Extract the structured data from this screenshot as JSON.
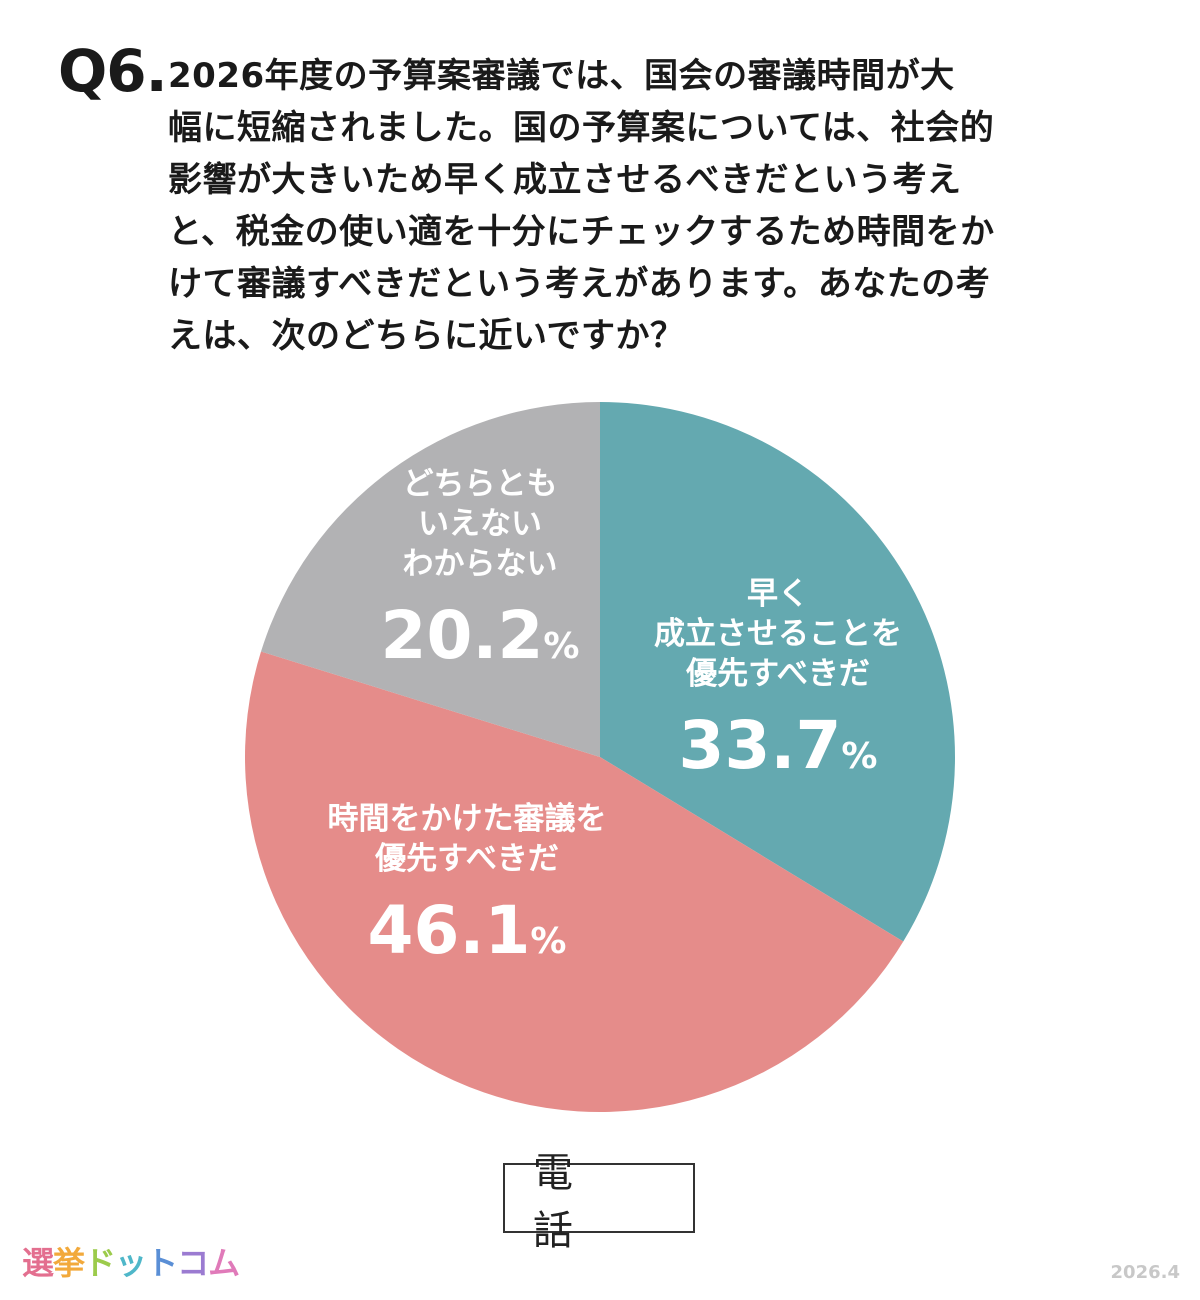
{
  "question": {
    "number": "Q6.",
    "lines": [
      "2026年度の予算案審議では、国会の審議時間が大",
      "幅に短縮されました。国の予算案については、社会的",
      "影響が大きいため早く成立させるべきだという考え",
      "と、税金の使い適を十分にチェックするため時間をか",
      "けて審議すべきだという考えがあります。あなたの考",
      "えは、次のどちらに近いですか？"
    ]
  },
  "chart_data": {
    "type": "pie",
    "unit": "%",
    "start_angle_deg": 0,
    "direction": "clockwise",
    "slices": [
      {
        "label_lines": [
          "早く",
          "成立させることを",
          "優先すべきだ"
        ],
        "value": 33.7,
        "value_text": "33.7",
        "color": "#64a9b0"
      },
      {
        "label_lines": [
          "時間をかけた審議を",
          "優先すべきだ"
        ],
        "value": 46.1,
        "value_text": "46.1",
        "color": "#e58c8a"
      },
      {
        "label_lines": [
          "どちらとも",
          "いえない",
          "わからない"
        ],
        "value": 20.2,
        "value_text": "20.2",
        "color": "#b2b2b4"
      }
    ]
  },
  "survey_mode": "電 話",
  "logo": {
    "chars": [
      {
        "t": "選",
        "color": "#e36f8f"
      },
      {
        "t": "挙",
        "color": "#f2a93b"
      },
      {
        "t": "ド",
        "color": "#9ccb4b"
      },
      {
        "t": "ッ",
        "color": "#4fb7c9"
      },
      {
        "t": "ト",
        "color": "#5a8fd6"
      },
      {
        "t": "コ",
        "color": "#9b7bd1"
      },
      {
        "t": "ム",
        "color": "#e07ab9"
      }
    ]
  },
  "date": "2026.4"
}
